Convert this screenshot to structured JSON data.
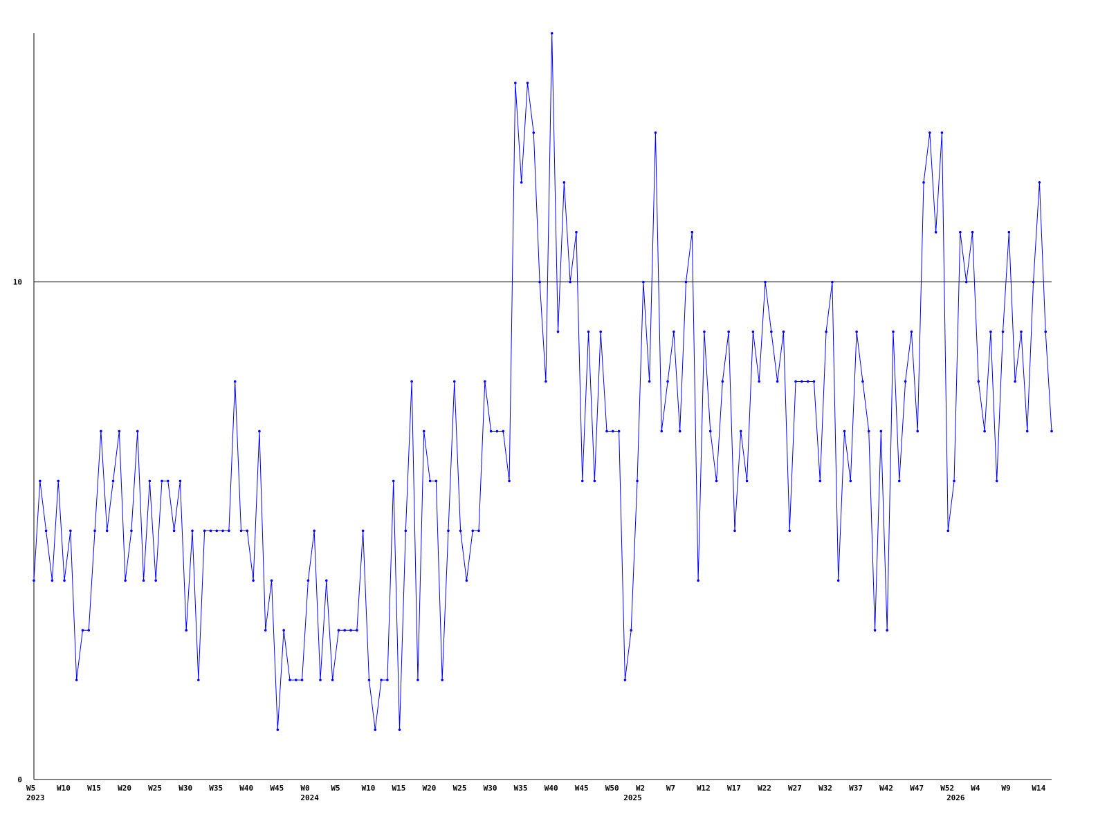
{
  "chart_data": {
    "type": "line",
    "categories": [
      "W5",
      null,
      null,
      null,
      null,
      "W10",
      null,
      null,
      null,
      null,
      "W15",
      null,
      null,
      null,
      null,
      "W20",
      null,
      null,
      null,
      null,
      "W25",
      null,
      null,
      null,
      null,
      "W30",
      null,
      null,
      null,
      null,
      "W35",
      null,
      null,
      null,
      null,
      "W40",
      null,
      null,
      null,
      null,
      "W45",
      null,
      null,
      null,
      null,
      "W0",
      null,
      null,
      null,
      null,
      "W5",
      null,
      null,
      null,
      null,
      "W10",
      null,
      null,
      null,
      null,
      "W15",
      null,
      null,
      null,
      null,
      "W20",
      null,
      null,
      null,
      null,
      "W25",
      null,
      null,
      null,
      null,
      "W30",
      null,
      null,
      null,
      null,
      "W35",
      null,
      null,
      null,
      null,
      "W40",
      null,
      null,
      null,
      null,
      "W45",
      null,
      null,
      null,
      null,
      "W50",
      null,
      null,
      null,
      null,
      "W2",
      null,
      null,
      null,
      null,
      "W7",
      null,
      null,
      null,
      null,
      "W12",
      null,
      null,
      null,
      null,
      "W17",
      null,
      null,
      null,
      null,
      "W22",
      null,
      null,
      null,
      null,
      "W27",
      null,
      null,
      null,
      null,
      "W32",
      null,
      null,
      null,
      null,
      "W37",
      null,
      null,
      null,
      null,
      "W42",
      null,
      null,
      null,
      null,
      "W47",
      null,
      null,
      null,
      null,
      "W52",
      null,
      null,
      null,
      null,
      "W4",
      null,
      null,
      null,
      null,
      "W9",
      null,
      null,
      null,
      null,
      "W14",
      null,
      null
    ],
    "category_years": [
      "2023",
      null,
      null,
      null,
      null,
      null,
      null,
      null,
      null,
      null,
      null,
      null,
      null,
      null,
      null,
      null,
      null,
      null,
      null,
      null,
      null,
      null,
      null,
      null,
      null,
      null,
      null,
      null,
      null,
      null,
      null,
      null,
      null,
      null,
      null,
      null,
      null,
      null,
      null,
      null,
      null,
      null,
      null,
      null,
      null,
      "2024",
      null,
      null,
      null,
      null,
      null,
      null,
      null,
      null,
      null,
      null,
      null,
      null,
      null,
      null,
      null,
      null,
      null,
      null,
      null,
      null,
      null,
      null,
      null,
      null,
      null,
      null,
      null,
      null,
      null,
      null,
      null,
      null,
      null,
      null,
      null,
      null,
      null,
      null,
      null,
      null,
      null,
      null,
      null,
      null,
      null,
      null,
      null,
      null,
      null,
      null,
      null,
      null,
      "2025",
      null,
      null,
      null,
      null,
      null,
      null,
      null,
      null,
      null,
      null,
      null,
      null,
      null,
      null,
      null,
      null,
      null,
      null,
      null,
      null,
      null,
      null,
      null,
      null,
      null,
      null,
      null,
      null,
      null,
      null,
      null,
      null,
      null,
      null,
      null,
      null,
      null,
      null,
      null,
      null,
      null,
      null,
      null,
      null,
      null,
      null,
      null,
      null,
      null,
      null,
      null,
      null,
      "2026",
      null,
      null,
      null,
      null,
      null,
      null,
      null,
      null,
      null,
      null,
      null,
      null,
      null,
      null,
      null,
      null
    ],
    "series": [
      {
        "color": "#0000ff",
        "values": [
          4,
          6,
          5,
          4,
          6,
          4,
          5,
          2,
          3,
          3,
          5,
          7,
          5,
          6,
          7,
          4,
          5,
          7,
          4,
          6,
          4,
          6,
          6,
          5,
          6,
          3,
          5,
          2,
          5,
          5,
          5,
          5,
          5,
          8,
          5,
          5,
          4,
          7,
          3,
          4,
          1,
          3,
          2,
          2,
          2,
          4,
          5,
          2,
          4,
          2,
          3,
          3,
          3,
          3,
          5,
          2,
          1,
          2,
          2,
          6,
          1,
          5,
          8,
          2,
          7,
          6,
          6,
          2,
          5,
          8,
          5,
          4,
          5,
          5,
          8,
          7,
          7,
          7,
          6,
          14,
          12,
          14,
          13,
          10,
          8,
          15,
          9,
          12,
          10,
          11,
          6,
          9,
          6,
          9,
          7,
          7,
          7,
          2,
          3,
          6,
          10,
          8,
          13,
          7,
          8,
          9,
          7,
          10,
          11,
          4,
          9,
          7,
          6,
          8,
          9,
          5,
          7,
          6,
          9,
          8,
          10,
          9,
          8,
          9,
          5,
          8,
          8,
          8,
          8,
          6,
          9,
          10,
          4,
          7,
          6,
          9,
          8,
          7,
          3,
          7,
          3,
          9,
          6,
          8,
          9,
          7,
          12,
          13,
          11,
          13,
          5,
          6,
          11,
          10,
          11,
          8,
          7,
          9,
          6,
          9,
          11,
          8,
          9,
          7,
          10,
          12,
          9,
          7
        ]
      }
    ],
    "ylim": [
      0,
      15
    ],
    "yticks": [
      0,
      10
    ],
    "grid": true
  }
}
